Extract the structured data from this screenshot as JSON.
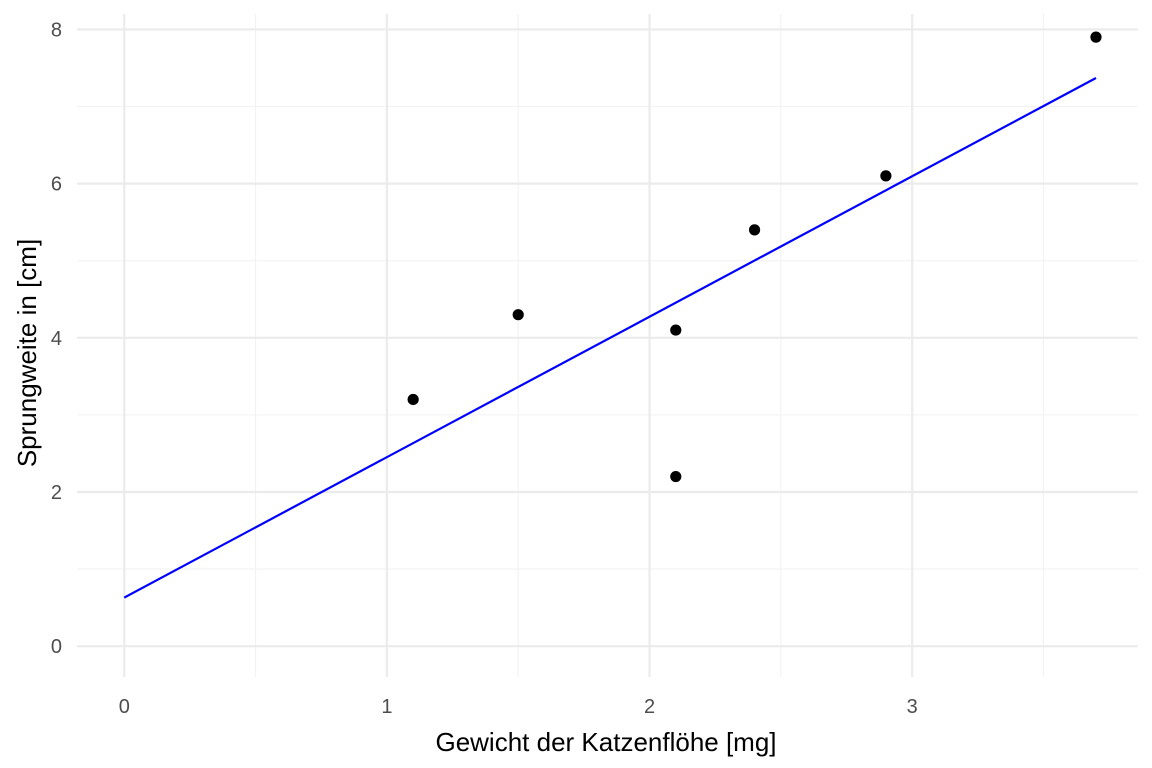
{
  "chart_data": {
    "type": "scatter",
    "xlabel": "Gewicht der Katzenflöhe [mg]",
    "ylabel": "Sprungweite in [cm]",
    "xlim": [
      -0.18,
      3.86
    ],
    "ylim": [
      -0.4,
      8.2
    ],
    "x_ticks": [
      0,
      1,
      2,
      3
    ],
    "x_tick_labels": [
      "0",
      "1",
      "2",
      "3"
    ],
    "x_minor_ticks": [
      0.5,
      1.5,
      2.5,
      3.5
    ],
    "y_ticks": [
      0,
      2,
      4,
      6,
      8
    ],
    "y_tick_labels": [
      "0",
      "2",
      "4",
      "6",
      "8"
    ],
    "y_minor_ticks": [
      1,
      3,
      5,
      7
    ],
    "grid": true,
    "points": [
      {
        "x": 1.1,
        "y": 3.2
      },
      {
        "x": 1.5,
        "y": 4.3
      },
      {
        "x": 2.1,
        "y": 4.1
      },
      {
        "x": 2.1,
        "y": 2.2
      },
      {
        "x": 2.4,
        "y": 5.4
      },
      {
        "x": 2.9,
        "y": 6.1
      },
      {
        "x": 3.7,
        "y": 7.9
      }
    ],
    "regression_line": {
      "x": [
        0,
        3.7
      ],
      "y": [
        0.63,
        7.37
      ]
    },
    "colors": {
      "point": "#000000",
      "line": "#0000ff",
      "grid_major": "#ebebeb",
      "grid_minor": "#f2f2f2",
      "background": "#ffffff"
    }
  }
}
